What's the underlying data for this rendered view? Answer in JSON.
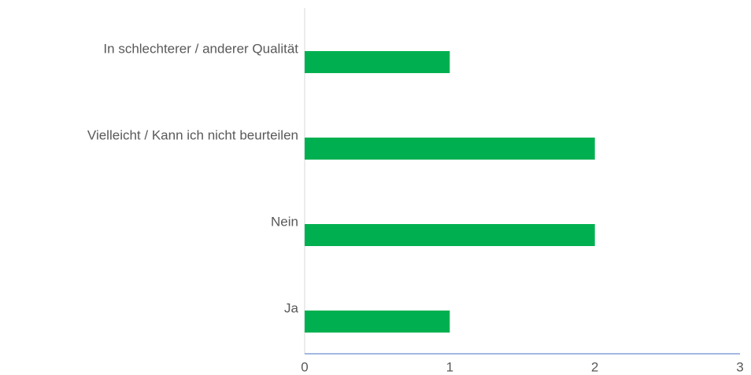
{
  "chart_data": {
    "type": "bar",
    "orientation": "horizontal",
    "categories": [
      "Ja",
      "Nein",
      "Vielleicht / Kann ich nicht beurteilen",
      "In schlechterer / anderer Qualität"
    ],
    "values": [
      1,
      2,
      2,
      1
    ],
    "color": "#00b050",
    "xlim": [
      0,
      3
    ],
    "xticks": [
      0,
      1,
      2,
      3
    ],
    "grid": false
  }
}
